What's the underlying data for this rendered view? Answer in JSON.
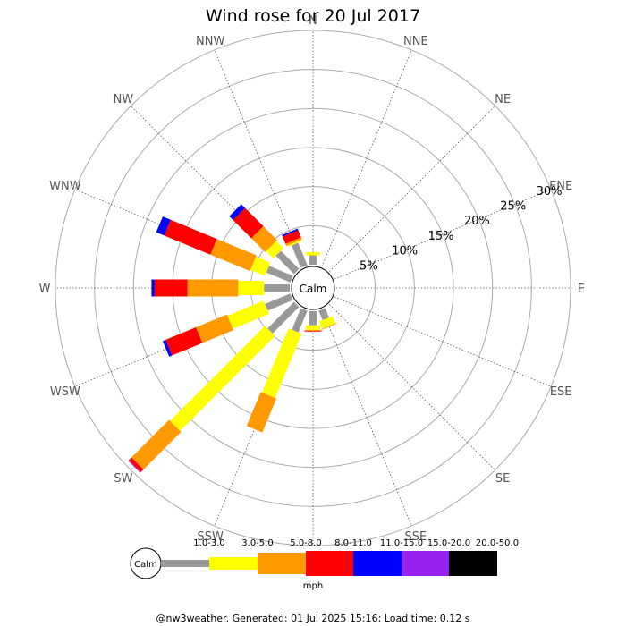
{
  "chart_data": {
    "type": "windrose",
    "title": "Wind rose for 20 Jul 2017",
    "directions": [
      "N",
      "NNE",
      "NE",
      "ENE",
      "E",
      "ESE",
      "SE",
      "SSE",
      "S",
      "SSW",
      "SW",
      "WSW",
      "W",
      "WNW",
      "NW",
      "NNW"
    ],
    "radial_ticks": [
      "5%",
      "10%",
      "15%",
      "20%",
      "25%",
      "30%"
    ],
    "radial_values": [
      5,
      10,
      15,
      20,
      25,
      30
    ],
    "radial_max": 30,
    "calm_label": "Calm",
    "speed_bins": [
      {
        "label": "1.0-3.0",
        "color": "#999999"
      },
      {
        "label": "3.0-5.0",
        "color": "#ffff00"
      },
      {
        "label": "5.0-8.0",
        "color": "#ff9900"
      },
      {
        "label": "8.0-11.0",
        "color": "#ff0000"
      },
      {
        "label": "11.0-15.0",
        "color": "#0000ff"
      },
      {
        "label": "15.0-20.0",
        "color": "#9922ee"
      },
      {
        "label": "20.0-50.0",
        "color": "#000000"
      }
    ],
    "unit": "mph",
    "petals": [
      {
        "direction": "NNW",
        "cumulative": [
          3.1,
          3.3,
          3.6,
          4.6,
          4.8,
          4.8,
          4.8
        ]
      },
      {
        "direction": "NW",
        "cumulative": [
          3.3,
          4.6,
          7.1,
          10.4,
          11.1,
          11.1,
          11.1
        ]
      },
      {
        "direction": "WNW",
        "cumulative": [
          3.3,
          5.3,
          10.8,
          17.2,
          18.3,
          18.3,
          18.3
        ]
      },
      {
        "direction": "W",
        "cumulative": [
          3.3,
          6.6,
          13.1,
          17.3,
          17.7,
          17.7,
          17.7
        ]
      },
      {
        "direction": "WSW",
        "cumulative": [
          3.5,
          8.5,
          12.8,
          17.0,
          17.4,
          17.4,
          17.4
        ]
      },
      {
        "direction": "SW",
        "cumulative": [
          4.8,
          22.0,
          28.8,
          29.3,
          29.3,
          29.4,
          29.4
        ]
      },
      {
        "direction": "SSW",
        "cumulative": [
          3.0,
          11.9,
          16.6,
          16.6,
          16.6,
          16.6,
          16.6
        ]
      },
      {
        "direction": "S",
        "cumulative": [
          1.8,
          2.4,
          2.5,
          2.6,
          2.6,
          2.6,
          2.6
        ]
      },
      {
        "direction": "SSE",
        "cumulative": [
          1.3,
          2.3,
          2.4,
          2.4,
          2.4,
          2.4,
          2.4
        ]
      },
      {
        "direction": "N",
        "cumulative": [
          1.2,
          1.6,
          1.6,
          1.6,
          1.6,
          1.6,
          1.6
        ]
      }
    ]
  },
  "footer": "@nw3weather. Generated: 01 Jul 2025 15:16; Load time: 0.12 s"
}
